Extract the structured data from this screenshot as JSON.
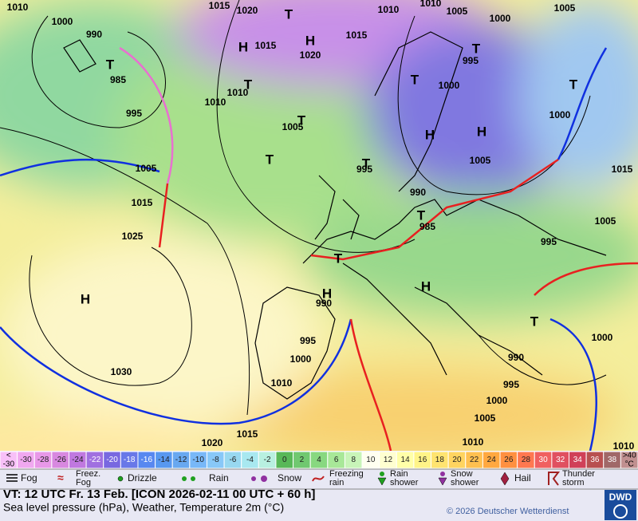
{
  "map": {
    "isobar_labels": [
      "1010",
      "1000",
      "990",
      "985",
      "995",
      "1005",
      "1015",
      "1025",
      "1030",
      "1020",
      "1015",
      "1010",
      "1000",
      "995",
      "990",
      "1005",
      "995",
      "990",
      "985",
      "995",
      "1000",
      "995",
      "1015",
      "1020",
      "1015",
      "1010",
      "1010",
      "1020",
      "1015",
      "1010",
      "1005",
      "1000",
      "1005",
      "1010",
      "1000",
      "1005",
      "1015",
      "1005",
      "1000",
      "990",
      "995",
      "1000",
      "1005",
      "1010",
      "1010"
    ],
    "centers": [
      "H",
      "T",
      "T",
      "T",
      "H",
      "H",
      "T",
      "T",
      "T",
      "T",
      "T",
      "T",
      "H",
      "H",
      "T",
      "H",
      "T",
      "T",
      "H"
    ]
  },
  "scale": {
    "low": [
      "<",
      "-30"
    ],
    "steps": [
      {
        "value": -30,
        "color": "#f0a8f0"
      },
      {
        "value": -28,
        "color": "#e898e8"
      },
      {
        "value": -26,
        "color": "#d888e0"
      },
      {
        "value": -24,
        "color": "#c078e0"
      },
      {
        "value": -22,
        "color": "#a070e0"
      },
      {
        "value": -20,
        "color": "#7868e0"
      },
      {
        "value": -18,
        "color": "#6878e8"
      },
      {
        "value": -16,
        "color": "#5888f0"
      },
      {
        "value": -14,
        "color": "#5898f0"
      },
      {
        "value": -12,
        "color": "#68a8f0"
      },
      {
        "value": -10,
        "color": "#78b8f8"
      },
      {
        "value": -8,
        "color": "#88c8f8"
      },
      {
        "value": -6,
        "color": "#98d8f0"
      },
      {
        "value": -4,
        "color": "#a8e8f0"
      },
      {
        "value": -2,
        "color": "#b8f0e0"
      },
      {
        "value": 0,
        "color": "#58b858"
      },
      {
        "value": 2,
        "color": "#70c870"
      },
      {
        "value": 4,
        "color": "#88d880"
      },
      {
        "value": 6,
        "color": "#a8e898"
      },
      {
        "value": 8,
        "color": "#c8f4b8"
      },
      {
        "value": 10,
        "color": "#fffff0"
      },
      {
        "value": 12,
        "color": "#ffffd0"
      },
      {
        "value": 14,
        "color": "#ffffa8"
      },
      {
        "value": 16,
        "color": "#fff488"
      },
      {
        "value": 18,
        "color": "#ffe470"
      },
      {
        "value": 20,
        "color": "#ffd460"
      },
      {
        "value": 22,
        "color": "#ffc050"
      },
      {
        "value": 24,
        "color": "#ffa840"
      },
      {
        "value": 26,
        "color": "#ff9040"
      },
      {
        "value": 28,
        "color": "#ff7850"
      },
      {
        "value": 30,
        "color": "#f06060"
      },
      {
        "value": 32,
        "color": "#e05060"
      },
      {
        "value": 34,
        "color": "#d04058"
      },
      {
        "value": 36,
        "color": "#b85050"
      },
      {
        "value": 38,
        "color": "#a06868"
      }
    ],
    "high": [
      ">40",
      "°C"
    ]
  },
  "legend": [
    [
      "Fog"
    ],
    [
      "Freez.",
      "Fog"
    ],
    [
      "Drizzle"
    ],
    [
      "Rain"
    ],
    [
      "Snow"
    ],
    [
      "Freezing",
      "rain"
    ],
    [
      "Rain",
      "shower"
    ],
    [
      "Snow",
      "shower"
    ],
    [
      "Hail"
    ],
    [
      "Thunder",
      "storm"
    ]
  ],
  "footer": {
    "valid_time": "VT: 12 UTC Fr.  13 Feb. [ICON 2026-02-11  00 UTC + 60 h]",
    "description": "Sea level pressure (hPa), Weather, Temperature 2m (°C)",
    "copyright": "© 2026 Deutscher Wetterdienst",
    "logo": "DWD"
  }
}
